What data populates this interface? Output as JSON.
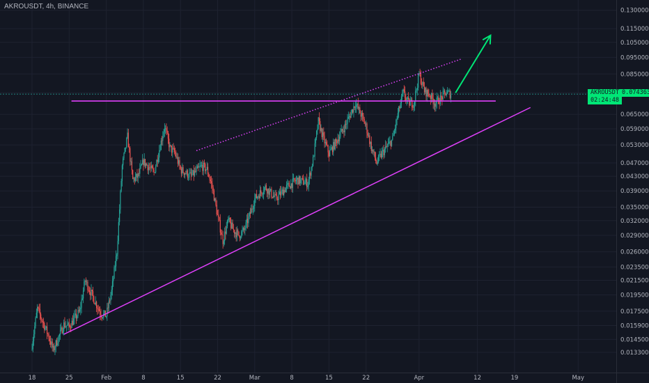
{
  "header": {
    "title": "AKROUSDT, 4h, BINANCE"
  },
  "price_tag": {
    "symbol": "AKROUSDT",
    "price": "0.074363",
    "countdown": "02:24:48"
  },
  "colors": {
    "background": "#131722",
    "grid": "#1e2230",
    "up": "#26a69a",
    "down": "#ef5350",
    "drawing": "#e040fb",
    "arrow": "#00e676",
    "axis_text": "#b2b5be"
  },
  "chart_data": {
    "type": "candlestick",
    "title": "AKROUSDT, 4h, BINANCE",
    "y_scale": "log",
    "ylim": [
      0.0128,
      0.133
    ],
    "y_ticks": [
      "0.130000",
      "0.115000",
      "0.105000",
      "0.095000",
      "0.085000",
      "0.075000",
      "0.065000",
      "0.059000",
      "0.053000",
      "0.047000",
      "0.043000",
      "0.039000",
      "0.035000",
      "0.032000",
      "0.029000",
      "0.026000",
      "0.023500",
      "0.021500",
      "0.019500",
      "0.017500",
      "0.015900",
      "0.014500",
      "0.013300"
    ],
    "x_ticks": [
      "18",
      "25",
      "Feb",
      "8",
      "15",
      "22",
      "Mar",
      "8",
      "15",
      "22",
      "Apr",
      "12",
      "19",
      "May"
    ],
    "current_price": 0.074363,
    "price_path": [
      {
        "date": "Jan 18",
        "price": 0.014
      },
      {
        "date": "Jan 19",
        "price": 0.0178
      },
      {
        "date": "Jan 21",
        "price": 0.015
      },
      {
        "date": "Jan 22",
        "price": 0.0135
      },
      {
        "date": "Jan 24",
        "price": 0.016
      },
      {
        "date": "Jan 25",
        "price": 0.0158
      },
      {
        "date": "Jan 27",
        "price": 0.0175
      },
      {
        "date": "Jan 28",
        "price": 0.0215
      },
      {
        "date": "Jan 30",
        "price": 0.0185
      },
      {
        "date": "Jan 31",
        "price": 0.0172
      },
      {
        "date": "Feb 1",
        "price": 0.017
      },
      {
        "date": "Feb 2",
        "price": 0.02
      },
      {
        "date": "Feb 3",
        "price": 0.026
      },
      {
        "date": "Feb 4",
        "price": 0.046
      },
      {
        "date": "Feb 5",
        "price": 0.056
      },
      {
        "date": "Feb 6",
        "price": 0.042
      },
      {
        "date": "Feb 7",
        "price": 0.043
      },
      {
        "date": "Feb 8",
        "price": 0.0475
      },
      {
        "date": "Feb 10",
        "price": 0.044
      },
      {
        "date": "Feb 12",
        "price": 0.06
      },
      {
        "date": "Feb 13",
        "price": 0.052
      },
      {
        "date": "Feb 14",
        "price": 0.05
      },
      {
        "date": "Feb 15",
        "price": 0.045
      },
      {
        "date": "Feb 17",
        "price": 0.043
      },
      {
        "date": "Feb 19",
        "price": 0.046
      },
      {
        "date": "Feb 20",
        "price": 0.045
      },
      {
        "date": "Feb 21",
        "price": 0.04
      },
      {
        "date": "Feb 22",
        "price": 0.033
      },
      {
        "date": "Feb 23",
        "price": 0.028
      },
      {
        "date": "Feb 24",
        "price": 0.032
      },
      {
        "date": "Feb 25",
        "price": 0.03
      },
      {
        "date": "Feb 26",
        "price": 0.029
      },
      {
        "date": "Feb 27",
        "price": 0.03
      },
      {
        "date": "Feb 28",
        "price": 0.033
      },
      {
        "date": "Mar 1",
        "price": 0.037
      },
      {
        "date": "Mar 3",
        "price": 0.04
      },
      {
        "date": "Mar 5",
        "price": 0.037
      },
      {
        "date": "Mar 7",
        "price": 0.04
      },
      {
        "date": "Mar 9",
        "price": 0.042
      },
      {
        "date": "Mar 11",
        "price": 0.041
      },
      {
        "date": "Mar 12",
        "price": 0.048
      },
      {
        "date": "Mar 13",
        "price": 0.062
      },
      {
        "date": "Mar 14",
        "price": 0.055
      },
      {
        "date": "Mar 15",
        "price": 0.05
      },
      {
        "date": "Mar 16",
        "price": 0.053
      },
      {
        "date": "Mar 18",
        "price": 0.06
      },
      {
        "date": "Mar 20",
        "price": 0.07
      },
      {
        "date": "Mar 21",
        "price": 0.065
      },
      {
        "date": "Mar 22",
        "price": 0.06
      },
      {
        "date": "Mar 23",
        "price": 0.052
      },
      {
        "date": "Mar 24",
        "price": 0.047
      },
      {
        "date": "Mar 25",
        "price": 0.05
      },
      {
        "date": "Mar 27",
        "price": 0.055
      },
      {
        "date": "Mar 28",
        "price": 0.065
      },
      {
        "date": "Mar 29",
        "price": 0.075
      },
      {
        "date": "Mar 30",
        "price": 0.07
      },
      {
        "date": "Mar 31",
        "price": 0.07
      },
      {
        "date": "Apr 1",
        "price": 0.085
      },
      {
        "date": "Apr 2",
        "price": 0.076
      },
      {
        "date": "Apr 3",
        "price": 0.074
      },
      {
        "date": "Apr 4",
        "price": 0.07
      },
      {
        "date": "Apr 5",
        "price": 0.072
      },
      {
        "date": "Apr 6",
        "price": 0.075
      },
      {
        "date": "Apr 7",
        "price": 0.0744
      }
    ],
    "drawings": [
      {
        "type": "horizontal_line",
        "style": "solid",
        "price": 0.071
      },
      {
        "type": "trendline",
        "style": "solid",
        "from": {
          "date": "Jan 24",
          "price": 0.015
        },
        "to": {
          "date": "Apr 22",
          "price": 0.068
        }
      },
      {
        "type": "trendline",
        "style": "dotted",
        "from": {
          "date": "Feb 18",
          "price": 0.051
        },
        "to": {
          "date": "Apr 9",
          "price": 0.094
        }
      },
      {
        "type": "arrow",
        "style": "solid",
        "from": {
          "date": "Apr 8",
          "price": 0.075
        },
        "to": {
          "date": "Apr 15",
          "price": 0.11
        }
      }
    ],
    "grid": true
  }
}
